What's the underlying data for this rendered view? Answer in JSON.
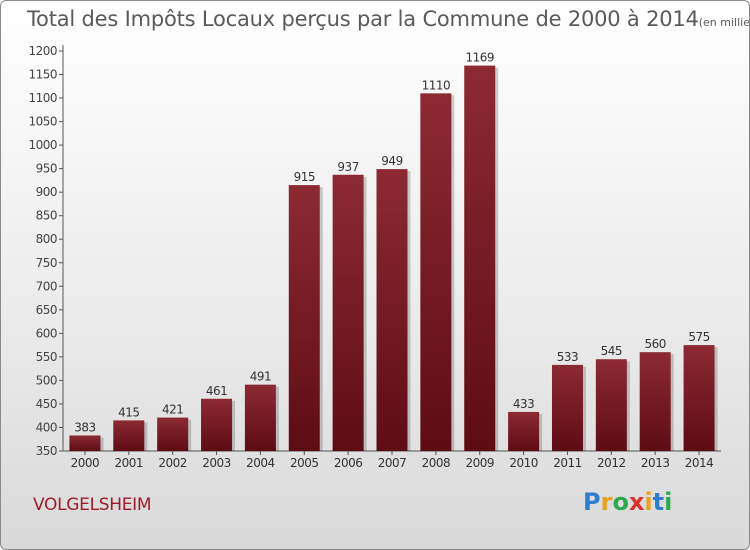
{
  "chart_data": {
    "type": "bar",
    "title": "Total des Impôts Locaux perçus par la Commune de 2000 à 2014",
    "unit": "(en milliers d'€)",
    "categories": [
      "2000",
      "2001",
      "2002",
      "2003",
      "2004",
      "2005",
      "2006",
      "2007",
      "2008",
      "2009",
      "2010",
      "2011",
      "2012",
      "2013",
      "2014"
    ],
    "values": [
      383,
      415,
      421,
      461,
      491,
      915,
      937,
      949,
      1110,
      1169,
      433,
      533,
      545,
      560,
      575
    ],
    "ylim": [
      350,
      1200
    ],
    "yticks": [
      350,
      400,
      450,
      500,
      550,
      600,
      650,
      700,
      750,
      800,
      850,
      900,
      950,
      1000,
      1050,
      1100,
      1150,
      1200
    ],
    "xlabel": "",
    "ylabel": "",
    "grid": false,
    "bar_color": "#7a1a22"
  },
  "commune": "VOLGELSHEIM",
  "brand": {
    "p": "P",
    "r": "r",
    "o": "o",
    "x": "x",
    "i1": "i",
    "t": "t",
    "i2": "i"
  }
}
